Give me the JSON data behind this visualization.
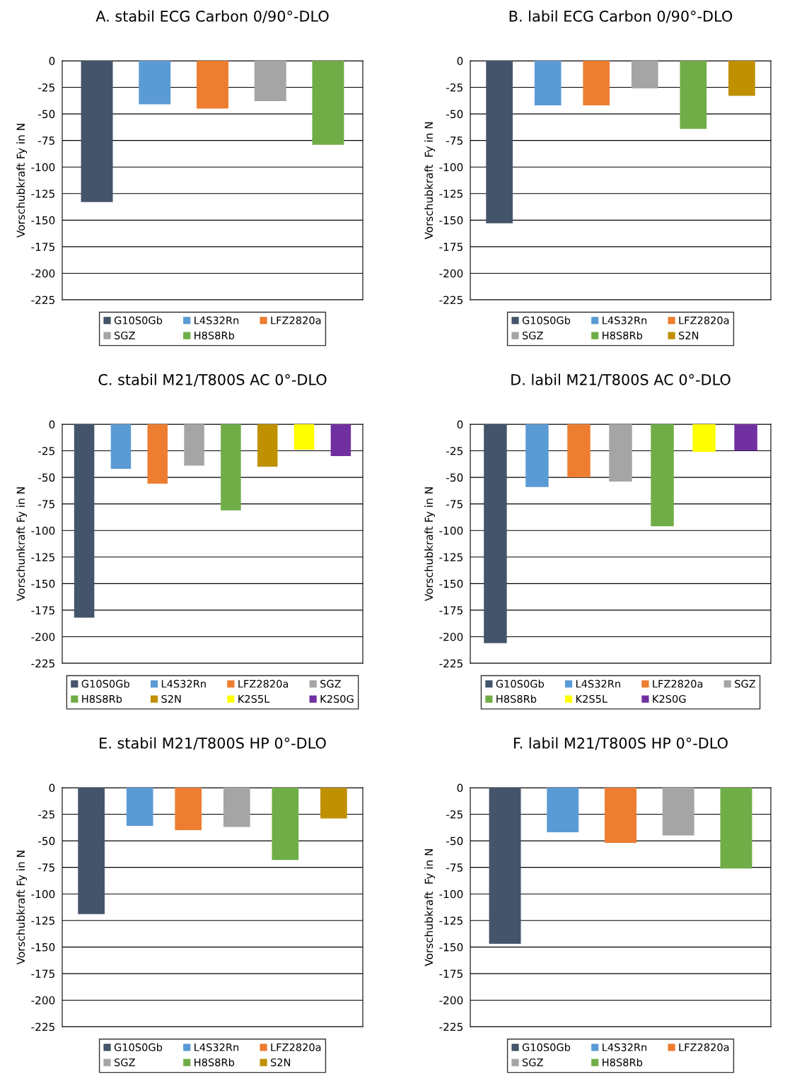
{
  "chart_data": [
    {
      "type": "bar",
      "title": "A. stabil ECG Carbon 0/90°-DLO",
      "ylabel": "Vorschubkraft Fy in N",
      "categories": [
        null,
        null,
        null,
        null,
        null
      ],
      "series": [
        {
          "name": "G10S0Gb",
          "color": "#44546a",
          "values": [
            -133,
            null,
            null,
            null,
            null
          ]
        },
        {
          "name": "L4S32Rn",
          "color": "#5b9bd5",
          "values": [
            null,
            -41,
            null,
            null,
            null
          ]
        },
        {
          "name": "LFZ2820a",
          "color": "#ed7d31",
          "values": [
            null,
            null,
            -45,
            null,
            null
          ]
        },
        {
          "name": "SGZ",
          "color": "#a5a5a5",
          "values": [
            null,
            null,
            null,
            -38,
            null
          ]
        },
        {
          "name": "H8S8Rb",
          "color": "#70ad47",
          "values": [
            null,
            null,
            null,
            null,
            -79
          ]
        }
      ],
      "ylim": [
        -225,
        0
      ],
      "yticks": [
        0,
        -25,
        -50,
        -75,
        -100,
        -125,
        -150,
        -175,
        -200,
        -225
      ],
      "grid": "y",
      "legend": "bottom",
      "tick_labels": "y"
    },
    {
      "type": "bar",
      "title": "B. labil ECG Carbon 0/90°-DLO",
      "ylabel": "Vorschubkraft  Fy in N",
      "categories": [
        null,
        null,
        null,
        null,
        null,
        null
      ],
      "series": [
        {
          "name": "G10S0Gb",
          "color": "#44546a",
          "values": [
            -153,
            null,
            null,
            null,
            null,
            null
          ]
        },
        {
          "name": "L4S32Rn",
          "color": "#5b9bd5",
          "values": [
            null,
            -42,
            null,
            null,
            null,
            null
          ]
        },
        {
          "name": "LFZ2820a",
          "color": "#ed7d31",
          "values": [
            null,
            null,
            -42,
            null,
            null,
            null
          ]
        },
        {
          "name": "SGZ",
          "color": "#a5a5a5",
          "values": [
            null,
            null,
            null,
            -26,
            null,
            null
          ]
        },
        {
          "name": "H8S8Rb",
          "color": "#70ad47",
          "values": [
            null,
            null,
            null,
            null,
            -64,
            null
          ]
        },
        {
          "name": "S2N",
          "color": "#bf9000",
          "values": [
            null,
            null,
            null,
            null,
            null,
            -33
          ]
        }
      ],
      "ylim": [
        -225,
        0
      ],
      "yticks": [
        0,
        -25,
        -50,
        -75,
        -100,
        -125,
        -150,
        -175,
        -200,
        -225
      ],
      "grid": "y",
      "legend": "bottom",
      "tick_labels": "y"
    },
    {
      "type": "bar",
      "title": "C. stabil M21/T800S AC 0°-DLO",
      "ylabel": "Vorschunkraft Fy in N",
      "categories": [
        null,
        null,
        null,
        null,
        null,
        null,
        null,
        null
      ],
      "series": [
        {
          "name": "G10S0Gb",
          "color": "#44546a",
          "values": [
            -182,
            null,
            null,
            null,
            null,
            null,
            null,
            null
          ]
        },
        {
          "name": "L4S32Rn",
          "color": "#5b9bd5",
          "values": [
            null,
            -42,
            null,
            null,
            null,
            null,
            null,
            null
          ]
        },
        {
          "name": "LFZ2820a",
          "color": "#ed7d31",
          "values": [
            null,
            null,
            -56,
            null,
            null,
            null,
            null,
            null
          ]
        },
        {
          "name": "SGZ",
          "color": "#a5a5a5",
          "values": [
            null,
            null,
            null,
            -39,
            null,
            null,
            null,
            null
          ]
        },
        {
          "name": "H8S8Rb",
          "color": "#70ad47",
          "values": [
            null,
            null,
            null,
            null,
            -81,
            null,
            null,
            null
          ]
        },
        {
          "name": "S2N",
          "color": "#bf9000",
          "values": [
            null,
            null,
            null,
            null,
            null,
            -40,
            null,
            null
          ]
        },
        {
          "name": "K2S5L",
          "color": "#ffff00",
          "values": [
            null,
            null,
            null,
            null,
            null,
            null,
            -24,
            null
          ]
        },
        {
          "name": "K2S0G",
          "color": "#7030a0",
          "values": [
            null,
            null,
            null,
            null,
            null,
            null,
            null,
            -30
          ]
        }
      ],
      "ylim": [
        -225,
        0
      ],
      "yticks": [
        0,
        -25,
        -50,
        -75,
        -100,
        -125,
        -150,
        -175,
        -200,
        -225
      ],
      "grid": "y",
      "legend": "bottom",
      "tick_labels": "y"
    },
    {
      "type": "bar",
      "title": "D. labil M21/T800S AC 0°-DLO",
      "ylabel": "Vorschubkraft Fy in N",
      "categories": [
        null,
        null,
        null,
        null,
        null,
        null,
        null
      ],
      "series": [
        {
          "name": "G10S0Gb",
          "color": "#44546a",
          "values": [
            -206,
            null,
            null,
            null,
            null,
            null,
            null
          ]
        },
        {
          "name": "L4S32Rn",
          "color": "#5b9bd5",
          "values": [
            null,
            -59,
            null,
            null,
            null,
            null,
            null
          ]
        },
        {
          "name": "LFZ2820a",
          "color": "#ed7d31",
          "values": [
            null,
            null,
            -50,
            null,
            null,
            null,
            null
          ]
        },
        {
          "name": "SGZ",
          "color": "#a5a5a5",
          "values": [
            null,
            null,
            null,
            -54,
            null,
            null,
            null
          ]
        },
        {
          "name": "H8S8Rb",
          "color": "#70ad47",
          "values": [
            null,
            null,
            null,
            null,
            -96,
            null,
            null
          ]
        },
        {
          "name": "K2S5L",
          "color": "#ffff00",
          "values": [
            null,
            null,
            null,
            null,
            null,
            -26,
            null
          ]
        },
        {
          "name": "K2S0G",
          "color": "#7030a0",
          "values": [
            null,
            null,
            null,
            null,
            null,
            null,
            -25
          ]
        }
      ],
      "ylim": [
        -225,
        0
      ],
      "yticks": [
        0,
        -25,
        -50,
        -75,
        -100,
        -125,
        -150,
        -175,
        -200,
        -225
      ],
      "grid": "y",
      "legend": "bottom",
      "tick_labels": "y"
    },
    {
      "type": "bar",
      "title": "E. stabil M21/T800S HP 0°-DLO",
      "ylabel": "Vorschubkraft Fy in N",
      "categories": [
        null,
        null,
        null,
        null,
        null,
        null
      ],
      "series": [
        {
          "name": "G10S0Gb",
          "color": "#44546a",
          "values": [
            -119,
            null,
            null,
            null,
            null,
            null
          ]
        },
        {
          "name": "L4S32Rn",
          "color": "#5b9bd5",
          "values": [
            null,
            -36,
            null,
            null,
            null,
            null
          ]
        },
        {
          "name": "LFZ2820a",
          "color": "#ed7d31",
          "values": [
            null,
            null,
            -40,
            null,
            null,
            null
          ]
        },
        {
          "name": "SGZ",
          "color": "#a5a5a5",
          "values": [
            null,
            null,
            null,
            -37,
            null,
            null
          ]
        },
        {
          "name": "H8S8Rb",
          "color": "#70ad47",
          "values": [
            null,
            null,
            null,
            null,
            -68,
            null
          ]
        },
        {
          "name": "S2N",
          "color": "#bf9000",
          "values": [
            null,
            null,
            null,
            null,
            null,
            -29
          ]
        }
      ],
      "ylim": [
        -225,
        0
      ],
      "yticks": [
        0,
        -25,
        -50,
        -75,
        -100,
        -125,
        -150,
        -175,
        -200,
        -225
      ],
      "grid": "y",
      "legend": "bottom",
      "tick_labels": "y"
    },
    {
      "type": "bar",
      "title": "F. labil M21/T800S HP 0°-DLO",
      "ylabel": "Vorschubkraft  Fy in N",
      "categories": [
        null,
        null,
        null,
        null,
        null
      ],
      "series": [
        {
          "name": "G10S0Gb",
          "color": "#44546a",
          "values": [
            -147,
            null,
            null,
            null,
            null
          ]
        },
        {
          "name": "L4S32Rn",
          "color": "#5b9bd5",
          "values": [
            null,
            -42,
            null,
            null,
            null
          ]
        },
        {
          "name": "LFZ2820a",
          "color": "#ed7d31",
          "values": [
            null,
            null,
            -52,
            null,
            null
          ]
        },
        {
          "name": "SGZ",
          "color": "#a5a5a5",
          "values": [
            null,
            null,
            null,
            -45,
            null
          ]
        },
        {
          "name": "H8S8Rb",
          "color": "#70ad47",
          "values": [
            null,
            null,
            null,
            null,
            -76
          ]
        }
      ],
      "ylim": [
        -225,
        0
      ],
      "yticks": [
        0,
        -25,
        -50,
        -75,
        -100,
        -125,
        -150,
        -175,
        -200,
        -225
      ],
      "grid": "y",
      "legend": "bottom",
      "tick_labels": "y"
    }
  ]
}
